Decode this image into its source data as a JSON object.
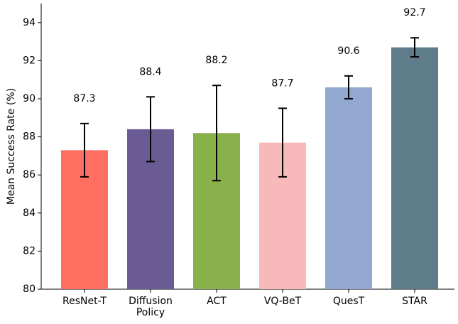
{
  "chart_data": {
    "type": "bar",
    "y_label": "Mean Success Rate (%)",
    "categories": [
      "ResNet-T",
      "Diffusion Policy",
      "ACT",
      "VQ-BeT",
      "QuesT",
      "STAR"
    ],
    "values": [
      87.3,
      88.4,
      88.2,
      87.7,
      90.6,
      92.7
    ],
    "errors": [
      1.4,
      1.7,
      2.5,
      1.8,
      0.6,
      0.5
    ],
    "colors": [
      "#ff6f61",
      "#6b5b95",
      "#88b04b",
      "#f7b9b9",
      "#92a8d1",
      "#5f7c8a"
    ],
    "ylim": [
      80,
      95
    ],
    "yticks": [
      80,
      82,
      84,
      86,
      88,
      90,
      92,
      94
    ],
    "grid": false
  }
}
